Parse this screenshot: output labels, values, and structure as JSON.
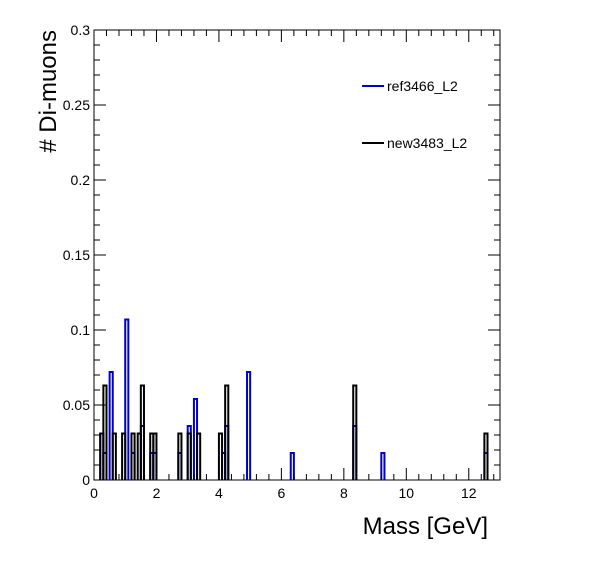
{
  "chart_data": {
    "type": "histogram",
    "title": "",
    "xlabel": "Mass [GeV]",
    "ylabel": "# Di-muons",
    "xlim": [
      0,
      13
    ],
    "ylim": [
      0,
      0.3
    ],
    "x_major_ticks": [
      0,
      2,
      4,
      6,
      8,
      10,
      12
    ],
    "y_major_ticks": [
      0,
      0.05,
      0.1,
      0.15,
      0.2,
      0.25,
      0.3
    ],
    "x_tick_labels": [
      "0",
      "2",
      "4",
      "6",
      "8",
      "10",
      "12"
    ],
    "y_tick_labels": [
      "0",
      "0.05",
      "0.1",
      "0.15",
      "0.2",
      "0.25",
      "0.3"
    ],
    "grid": false,
    "legend_position": "top-right",
    "bin_width": 0.1,
    "series": [
      {
        "name": "ref3466_L2",
        "color": "#0000cc",
        "bins": [
          {
            "x": 0.2,
            "y": 0.031
          },
          {
            "x": 0.3,
            "y": 0.018
          },
          {
            "x": 0.5,
            "y": 0.072
          },
          {
            "x": 1.0,
            "y": 0.107
          },
          {
            "x": 1.2,
            "y": 0.018
          },
          {
            "x": 1.5,
            "y": 0.036
          },
          {
            "x": 1.8,
            "y": 0.018
          },
          {
            "x": 1.9,
            "y": 0.018
          },
          {
            "x": 2.7,
            "y": 0.018
          },
          {
            "x": 3.0,
            "y": 0.036
          },
          {
            "x": 3.2,
            "y": 0.054
          },
          {
            "x": 4.1,
            "y": 0.018
          },
          {
            "x": 4.2,
            "y": 0.036
          },
          {
            "x": 4.9,
            "y": 0.072
          },
          {
            "x": 6.3,
            "y": 0.018
          },
          {
            "x": 8.3,
            "y": 0.036
          },
          {
            "x": 9.2,
            "y": 0.018
          },
          {
            "x": 12.5,
            "y": 0.018
          }
        ]
      },
      {
        "name": "new3483_L2",
        "color": "#000000",
        "bins": [
          {
            "x": 0.2,
            "y": 0.031
          },
          {
            "x": 0.3,
            "y": 0.063
          },
          {
            "x": 0.6,
            "y": 0.031
          },
          {
            "x": 0.9,
            "y": 0.031
          },
          {
            "x": 1.2,
            "y": 0.031
          },
          {
            "x": 1.4,
            "y": 0.031
          },
          {
            "x": 1.5,
            "y": 0.063
          },
          {
            "x": 1.8,
            "y": 0.031
          },
          {
            "x": 1.9,
            "y": 0.031
          },
          {
            "x": 2.7,
            "y": 0.031
          },
          {
            "x": 3.0,
            "y": 0.031
          },
          {
            "x": 3.3,
            "y": 0.031
          },
          {
            "x": 4.0,
            "y": 0.031
          },
          {
            "x": 4.2,
            "y": 0.063
          },
          {
            "x": 8.3,
            "y": 0.063
          },
          {
            "x": 12.5,
            "y": 0.031
          }
        ]
      }
    ]
  }
}
